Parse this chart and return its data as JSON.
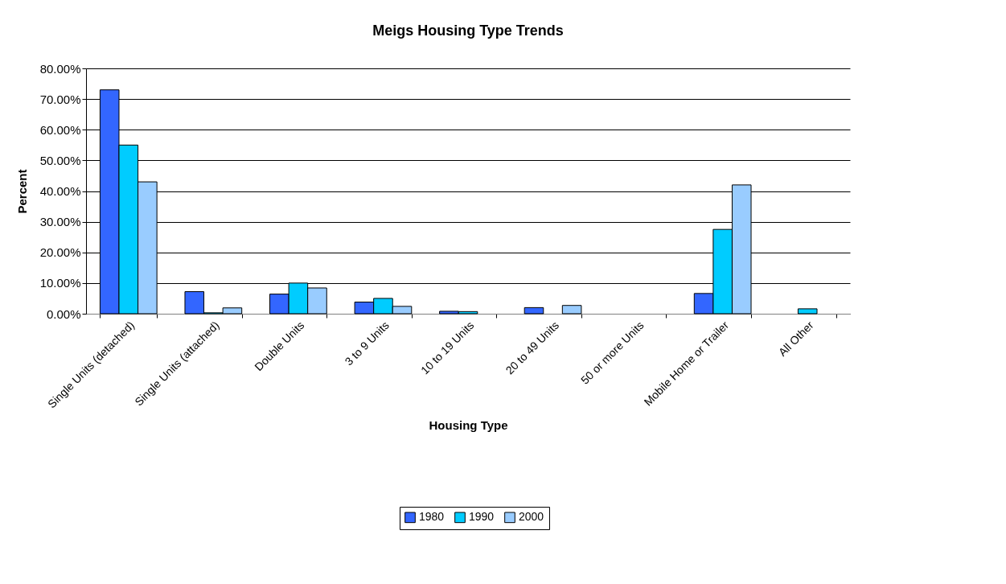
{
  "chart_data": {
    "type": "bar",
    "title": "Meigs Housing Type Trends",
    "xlabel": "Housing Type",
    "ylabel": "Percent",
    "categories": [
      "Single Units (detached)",
      "Single Units (attached)",
      "Double Units",
      "3 to 9 Units",
      "10 to 19 Units",
      "20 to 49 Units",
      "50 or more Units",
      "Mobile Home or Trailer",
      "All Other"
    ],
    "series": [
      {
        "name": "1980",
        "color": "#3366ff",
        "values": [
          73,
          7.2,
          6.4,
          3.8,
          0.8,
          2.0,
          null,
          6.6,
          null
        ]
      },
      {
        "name": "1990",
        "color": "#00ccff",
        "values": [
          55,
          0.3,
          10,
          5,
          0.7,
          null,
          null,
          27.5,
          1.6
        ]
      },
      {
        "name": "2000",
        "color": "#99ccff",
        "values": [
          43,
          1.9,
          8.4,
          2.4,
          null,
          2.7,
          null,
          42,
          null
        ]
      }
    ],
    "ylim": [
      0,
      80
    ],
    "yticks": [
      {
        "value": 0,
        "label": "0.00%"
      },
      {
        "value": 10,
        "label": "10.00%"
      },
      {
        "value": 20,
        "label": "20.00%"
      },
      {
        "value": 30,
        "label": "30.00%"
      },
      {
        "value": 40,
        "label": "40.00%"
      },
      {
        "value": 50,
        "label": "50.00%"
      },
      {
        "value": 60,
        "label": "60.00%"
      },
      {
        "value": 70,
        "label": "70.00%"
      },
      {
        "value": 80,
        "label": "80.00%"
      }
    ],
    "grid": "y",
    "legend": "bottom"
  }
}
